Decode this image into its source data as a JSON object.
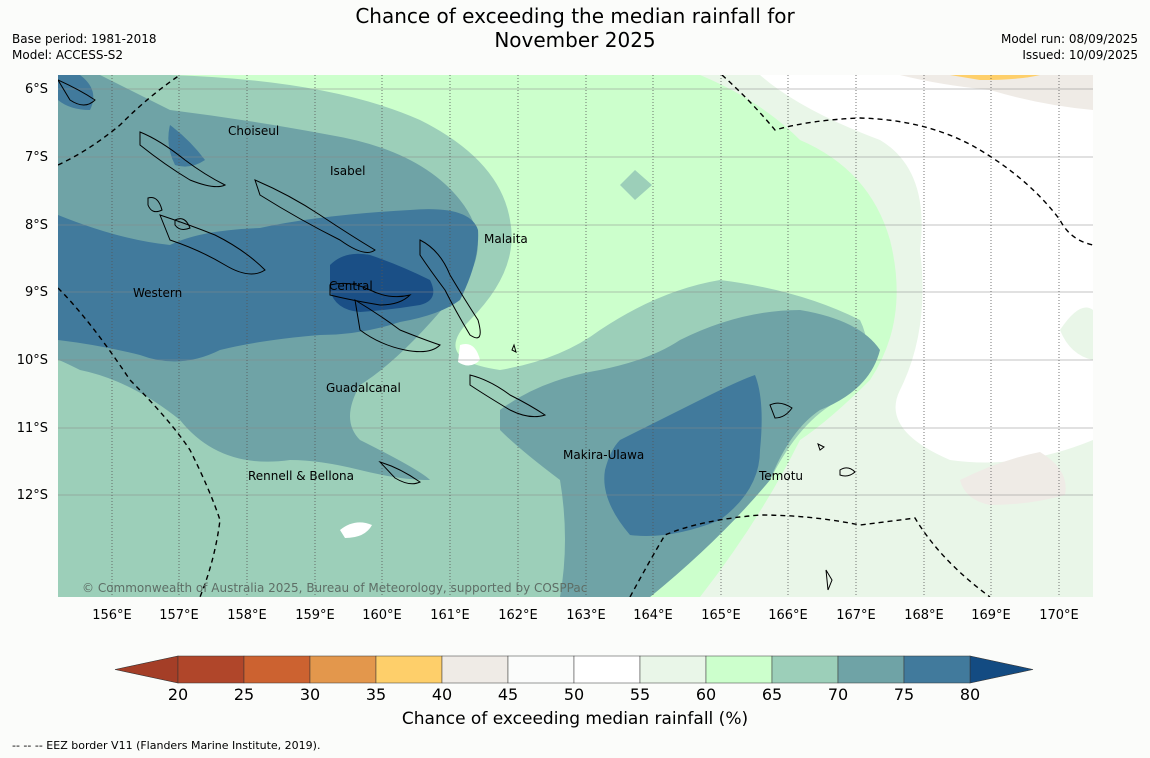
{
  "title": {
    "line1": "Chance of exceeding the median rainfall for",
    "line2": "November 2025"
  },
  "meta_left": {
    "base_period": "Base period: 1981-2018",
    "model": "Model: ACCESS-S2"
  },
  "meta_right": {
    "model_run": "Model run: 08/09/2025",
    "issued": "Issued: 10/09/2025"
  },
  "lat_labels": [
    "6°S",
    "7°S",
    "8°S",
    "9°S",
    "10°S",
    "11°S",
    "12°S"
  ],
  "lon_labels": [
    "156°E",
    "157°E",
    "158°E",
    "159°E",
    "160°E",
    "161°E",
    "162°E",
    "163°E",
    "164°E",
    "165°E",
    "166°E",
    "167°E",
    "168°E",
    "169°E",
    "170°E"
  ],
  "provinces": [
    "Choiseul",
    "Isabel",
    "Malaita",
    "Western",
    "Central",
    "Guadalcanal",
    "Makira-Ulawa",
    "Temotu",
    "Rennell & Bellona"
  ],
  "copyright": "© Commonwealth of Australia 2025, Bureau of Meteorology, supported by COSPPac",
  "colorbar": {
    "ticks": [
      "20",
      "25",
      "30",
      "35",
      "40",
      "45",
      "50",
      "55",
      "60",
      "65",
      "70",
      "75",
      "80"
    ],
    "colors": [
      "#b0462a",
      "#cc6230",
      "#e3974c",
      "#fecf6a",
      "#efebe6",
      "#fbfcfb",
      "#ffffff",
      "#e9f6e8",
      "#ccffcc",
      "#9ccfb9",
      "#6fa3a6",
      "#417a9c"
    ],
    "under_color": "#a43e27",
    "over_color": "#134b82",
    "title": "Chance of exceeding median rainfall (%)"
  },
  "eez_note": "--  --  -- EEZ border V11 (Flanders Marine Institute, 2019)."
}
